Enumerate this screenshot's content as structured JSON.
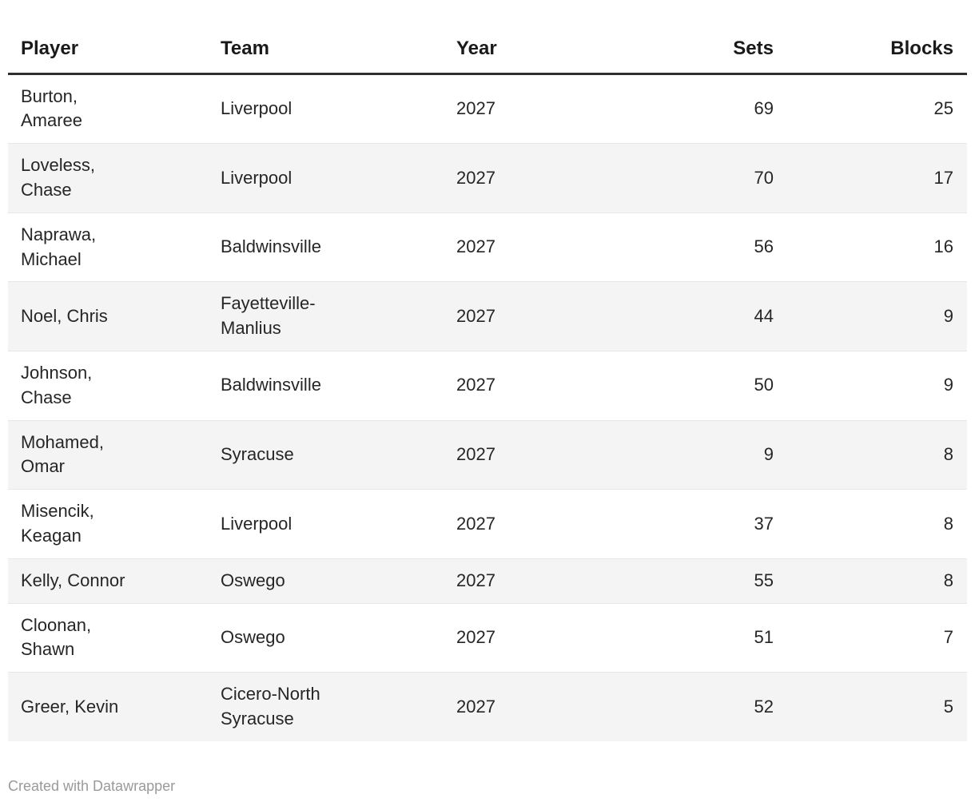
{
  "chart_data": {
    "type": "table",
    "columns": [
      {
        "key": "player",
        "label": "Player",
        "align": "left"
      },
      {
        "key": "team",
        "label": "Team",
        "align": "left"
      },
      {
        "key": "year",
        "label": "Year",
        "align": "left"
      },
      {
        "key": "sets",
        "label": "Sets",
        "align": "right"
      },
      {
        "key": "blocks",
        "label": "Blocks",
        "align": "right"
      }
    ],
    "rows": [
      {
        "player": "Burton,\nAmaree",
        "team": "Liverpool",
        "year": "2027",
        "sets": "69",
        "blocks": "25"
      },
      {
        "player": "Loveless,\nChase",
        "team": "Liverpool",
        "year": "2027",
        "sets": "70",
        "blocks": "17"
      },
      {
        "player": "Naprawa,\nMichael",
        "team": "Baldwinsville",
        "year": "2027",
        "sets": "56",
        "blocks": "16"
      },
      {
        "player": "Noel, Chris",
        "team": "Fayetteville-\nManlius",
        "year": "2027",
        "sets": "44",
        "blocks": "9"
      },
      {
        "player": "Johnson,\nChase",
        "team": "Baldwinsville",
        "year": "2027",
        "sets": "50",
        "blocks": "9"
      },
      {
        "player": "Mohamed,\nOmar",
        "team": "Syracuse",
        "year": "2027",
        "sets": "9",
        "blocks": "8"
      },
      {
        "player": "Misencik,\nKeagan",
        "team": "Liverpool",
        "year": "2027",
        "sets": "37",
        "blocks": "8"
      },
      {
        "player": "Kelly, Connor",
        "team": "Oswego",
        "year": "2027",
        "sets": "55",
        "blocks": "8"
      },
      {
        "player": "Cloonan,\nShawn",
        "team": "Oswego",
        "year": "2027",
        "sets": "51",
        "blocks": "7"
      },
      {
        "player": "Greer, Kevin",
        "team": "Cicero-North\nSyracuse",
        "year": "2027",
        "sets": "52",
        "blocks": "5"
      }
    ],
    "title": "",
    "legend_position": "none",
    "grid": "horizontal-dividers"
  },
  "footer": {
    "attribution": "Created with Datawrapper"
  },
  "colors": {
    "text": "#262626",
    "header_text": "#1a1a1a",
    "header_rule": "#2e2e2e",
    "stripe": "#f4f4f4",
    "divider": "#e7e7e7",
    "footer_text": "#9a9a9a",
    "background": "#ffffff"
  }
}
